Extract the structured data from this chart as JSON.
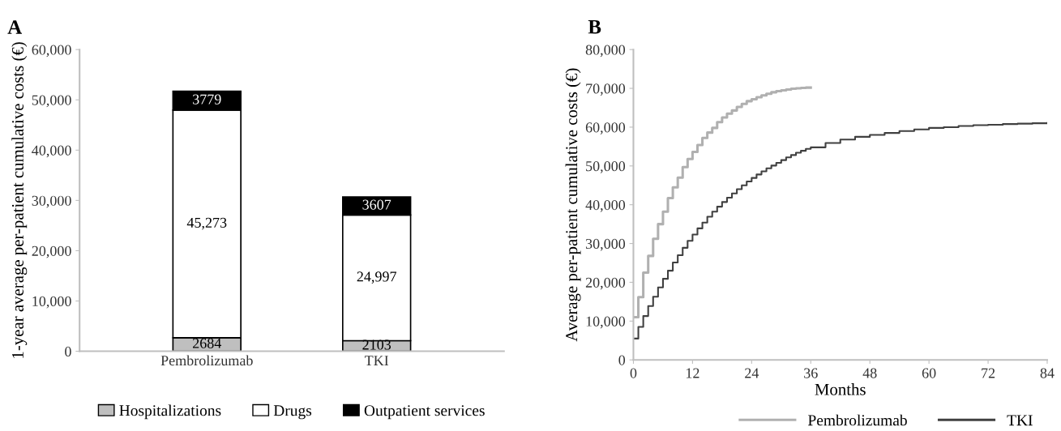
{
  "chart_data": [
    {
      "type": "bar",
      "title": "A",
      "ylabel": "1-year average per-patient cumulative costs (€)",
      "categories": [
        "Pembrolizumab",
        "TKI"
      ],
      "stacked": true,
      "legend": "bottom",
      "grid": false,
      "series": [
        {
          "name": "Hospitalizations",
          "color": "#bfbfbf",
          "values": [
            2684,
            2103
          ],
          "value_labels": [
            "2684",
            "2103"
          ]
        },
        {
          "name": "Drugs",
          "color": "#ffffff",
          "values": [
            45273,
            24997
          ],
          "value_labels": [
            "45,273",
            "24,997"
          ]
        },
        {
          "name": "Outpatient services",
          "color": "#000000",
          "values": [
            3779,
            3607
          ],
          "value_labels": [
            "3779",
            "3607"
          ]
        }
      ],
      "ylim": [
        0,
        60000
      ],
      "yticks": [
        0,
        {
          "value": 10000,
          "label": "10,000"
        },
        {
          "value": 20000,
          "label": "20,000"
        },
        {
          "value": 30000,
          "label": "30,000"
        },
        {
          "value": 40000,
          "label": "40,000"
        },
        {
          "value": 50000,
          "label": "50,000"
        },
        {
          "value": 60000,
          "label": "60,000"
        }
      ]
    },
    {
      "type": "step",
      "title": "B",
      "xlabel": "Months",
      "ylabel": "Average per-patient cumulative costs (€)",
      "legend": "bottom right",
      "grid": false,
      "marker": "none",
      "line_style": "solid",
      "series": [
        {
          "name": "Pembrolizumab",
          "color": "#b0b0b0",
          "x": [
            0,
            1,
            2,
            3,
            4,
            5,
            6,
            7,
            8,
            9,
            10,
            11,
            12,
            13,
            14,
            15,
            16,
            17,
            18,
            19,
            20,
            21,
            22,
            23,
            24,
            25,
            26,
            27,
            28,
            29,
            30,
            31,
            32,
            33,
            34,
            35,
            36
          ],
          "values": [
            11000,
            16200,
            22500,
            26800,
            31200,
            35000,
            38200,
            41700,
            44500,
            47000,
            49700,
            51800,
            53600,
            55400,
            57200,
            58600,
            59800,
            61300,
            62500,
            63500,
            64300,
            65200,
            66000,
            66700,
            67200,
            67700,
            68200,
            68600,
            69000,
            69300,
            69500,
            69700,
            69900,
            70000,
            70100,
            70200,
            70200
          ]
        },
        {
          "name": "TKI",
          "color": "#404040",
          "x": [
            0,
            1,
            2,
            3,
            4,
            5,
            6,
            7,
            8,
            9,
            10,
            11,
            12,
            13,
            14,
            15,
            16,
            17,
            18,
            19,
            20,
            21,
            22,
            23,
            24,
            25,
            26,
            27,
            28,
            29,
            30,
            31,
            32,
            33,
            34,
            35,
            36,
            39,
            42,
            45,
            48,
            51,
            54,
            57,
            60,
            63,
            66,
            69,
            72,
            75,
            78,
            81,
            84
          ],
          "values": [
            5500,
            8500,
            11300,
            13900,
            16300,
            18700,
            20900,
            23000,
            25100,
            27000,
            28900,
            30700,
            32300,
            33900,
            35400,
            36900,
            38200,
            39500,
            40700,
            41800,
            42900,
            44000,
            45000,
            46000,
            46900,
            47800,
            48600,
            49400,
            50100,
            50800,
            51500,
            52200,
            52800,
            53400,
            53900,
            54400,
            54800,
            55900,
            56800,
            57500,
            58000,
            58500,
            59000,
            59400,
            59800,
            60000,
            60300,
            60500,
            60600,
            60800,
            60900,
            61000,
            61100
          ]
        }
      ],
      "xlim": [
        0,
        84
      ],
      "xticks": [
        0,
        12,
        24,
        36,
        48,
        60,
        72,
        84
      ],
      "ylim": [
        0,
        80000
      ],
      "yticks": [
        0,
        {
          "value": 10000,
          "label": "10,000"
        },
        {
          "value": 20000,
          "label": "20,000"
        },
        {
          "value": 30000,
          "label": "30,000"
        },
        {
          "value": 40000,
          "label": "40,000"
        },
        {
          "value": 50000,
          "label": "50,000"
        },
        {
          "value": 60000,
          "label": "60,000"
        },
        {
          "value": 70000,
          "label": "70,000"
        },
        {
          "value": 80000,
          "label": "80,000"
        }
      ]
    }
  ]
}
